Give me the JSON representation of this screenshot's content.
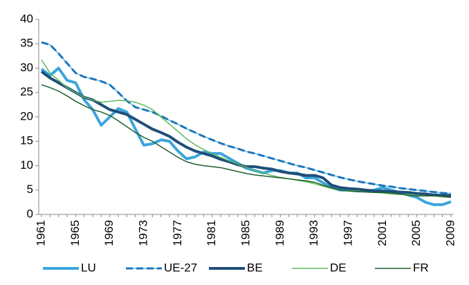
{
  "chart_data": {
    "type": "line",
    "x": [
      1961,
      1962,
      1963,
      1964,
      1965,
      1966,
      1967,
      1968,
      1969,
      1970,
      1971,
      1972,
      1973,
      1974,
      1975,
      1976,
      1977,
      1978,
      1979,
      1980,
      1981,
      1982,
      1983,
      1984,
      1985,
      1986,
      1987,
      1988,
      1989,
      1990,
      1991,
      1992,
      1993,
      1994,
      1995,
      1996,
      1997,
      1998,
      1999,
      2000,
      2001,
      2002,
      2003,
      2004,
      2005,
      2006,
      2007,
      2008,
      2009
    ],
    "xlim": [
      1961,
      2009
    ],
    "xticks": [
      1961,
      1965,
      1969,
      1973,
      1977,
      1981,
      1985,
      1989,
      1993,
      1997,
      2001,
      2005,
      2009
    ],
    "ylim": [
      0,
      40
    ],
    "yticks": [
      0,
      5,
      10,
      15,
      20,
      25,
      30,
      35,
      40
    ],
    "series": [
      {
        "name": "LU",
        "color": "#3aa5dc",
        "width": 4,
        "dashed": false,
        "values": [
          29.8,
          28.5,
          30,
          27.5,
          27,
          23.5,
          21.5,
          18.3,
          20,
          21.7,
          21,
          17.5,
          14.2,
          14.5,
          15.3,
          15,
          13,
          11.4,
          11.8,
          12.8,
          12.5,
          12.5,
          11.5,
          10.5,
          9.5,
          9,
          8.5,
          9,
          9,
          8.5,
          8.5,
          7.5,
          7.5,
          6.5,
          5.5,
          5,
          5,
          4.8,
          4.8,
          5,
          5.5,
          5,
          4.5,
          4,
          3.5,
          2.5,
          2,
          2,
          2.6
        ]
      },
      {
        "name": "UE-27",
        "color": "#1b75bb",
        "width": 3,
        "dashed": true,
        "values": [
          35.3,
          34.8,
          33,
          31,
          29,
          28.2,
          27.8,
          27.3,
          26.6,
          25,
          23.3,
          22,
          21.5,
          21,
          20.2,
          19.3,
          18.5,
          17.6,
          16.8,
          16,
          15.3,
          14.6,
          14,
          13.5,
          12.9,
          12.5,
          12,
          11.5,
          11,
          10.5,
          10,
          9.6,
          9.1,
          8.6,
          8.1,
          7.6,
          7.2,
          6.8,
          6.5,
          6.2,
          5.9,
          5.7,
          5.4,
          5.2,
          5,
          4.8,
          4.6,
          4.4,
          4.3
        ]
      },
      {
        "name": "BE",
        "color": "#1f4e79",
        "width": 4,
        "dashed": false,
        "values": [
          29.3,
          28,
          27,
          26,
          25,
          24,
          23.5,
          22.5,
          21.5,
          21,
          20.5,
          19.5,
          18.5,
          17.5,
          16.8,
          16,
          14.8,
          13.8,
          13,
          12.5,
          12,
          11.3,
          10.8,
          10.2,
          9.8,
          9.8,
          9.5,
          9.3,
          8.8,
          8.5,
          8.3,
          8,
          8,
          7.5,
          6,
          5.5,
          5.3,
          5.2,
          5,
          4.8,
          4.8,
          4.7,
          4.6,
          4.5,
          4.3,
          4.2,
          4,
          3.9,
          3.9
        ]
      },
      {
        "name": "DE",
        "color": "#5cb85c",
        "width": 1.5,
        "dashed": false,
        "values": [
          31.7,
          29,
          27.5,
          26,
          25,
          24,
          23.5,
          23,
          23.2,
          23.4,
          23.3,
          23,
          22.4,
          21.5,
          20,
          18.5,
          17,
          15.5,
          14.3,
          13.3,
          12.5,
          11.7,
          11,
          10.3,
          9.7,
          9,
          8.5,
          8,
          7.6,
          7.3,
          7,
          6.7,
          6.3,
          5.8,
          5.3,
          5,
          4.9,
          4.8,
          4.6,
          4.5,
          4.4,
          4.2,
          4.1,
          4.1,
          3.9,
          3.8,
          3.8,
          3.6,
          3.5
        ]
      },
      {
        "name": "FR",
        "color": "#1e5e2e",
        "width": 1.5,
        "dashed": false,
        "values": [
          26.6,
          26,
          25.3,
          24.3,
          23.2,
          22.3,
          21.5,
          21,
          20.3,
          19.2,
          18,
          16.8,
          15.8,
          15,
          13.9,
          12.8,
          11.7,
          10.8,
          10.3,
          10,
          9.8,
          9.6,
          9.2,
          8.8,
          8.4,
          8.1,
          7.9,
          7.7,
          7.5,
          7.3,
          7.1,
          6.9,
          6.6,
          6,
          5.5,
          5,
          4.8,
          4.7,
          4.6,
          4.5,
          4.5,
          4.4,
          4.2,
          3.9,
          3.8,
          3.8,
          3.8,
          3.7,
          3.5
        ]
      }
    ]
  }
}
